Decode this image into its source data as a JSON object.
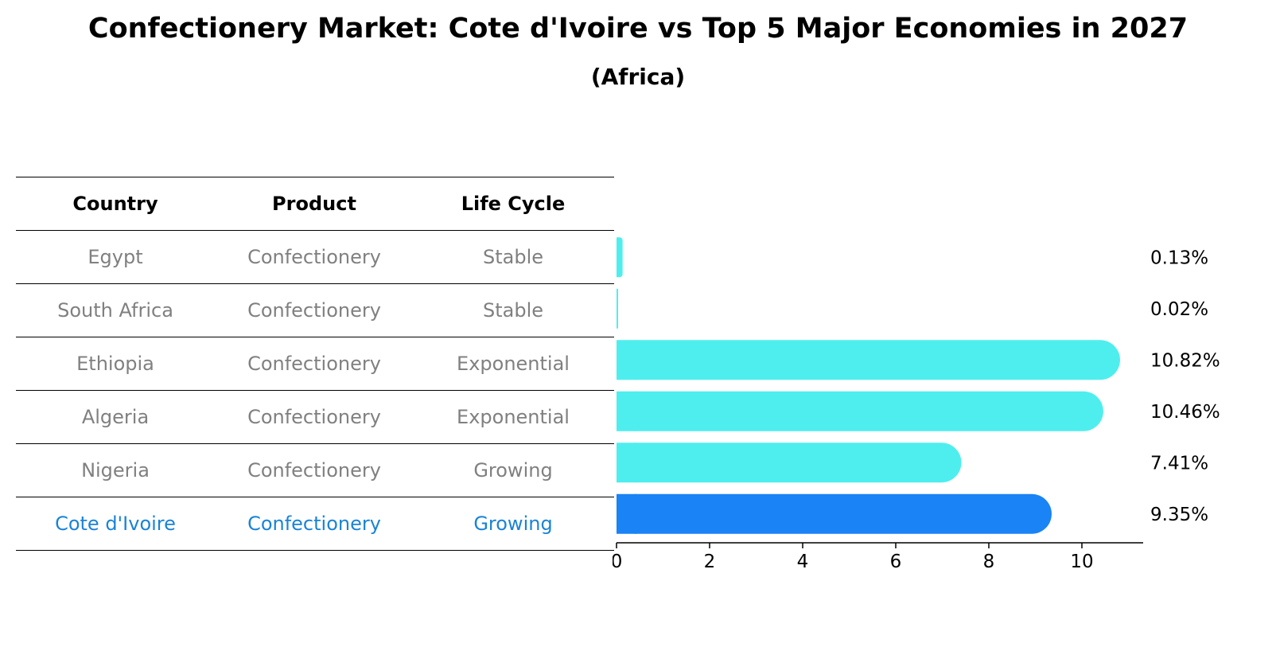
{
  "title": "Confectionery Market: Cote d'Ivoire vs Top 5 Major Economies in 2027",
  "subtitle": "(Africa)",
  "table": {
    "headers": [
      "Country",
      "Product",
      "Life Cycle"
    ],
    "rows": [
      [
        "Egypt",
        "Confectionery",
        "Stable"
      ],
      [
        "South Africa",
        "Confectionery",
        "Stable"
      ],
      [
        "Ethiopia",
        "Confectionery",
        "Exponential"
      ],
      [
        "Algeria",
        "Confectionery",
        "Exponential"
      ],
      [
        "Nigeria",
        "Confectionery",
        "Growing"
      ],
      [
        "Cote d'Ivoire",
        "Confectionery",
        "Growing"
      ]
    ]
  },
  "colors": {
    "bar": "#4eeeee",
    "highlight": "#1a83f5",
    "muted_text": "#808080",
    "highlight_text": "#1a83d6"
  },
  "chart_data": {
    "type": "bar",
    "orientation": "horizontal",
    "categories": [
      "Egypt",
      "South Africa",
      "Ethiopia",
      "Algeria",
      "Nigeria",
      "Cote d'Ivoire"
    ],
    "values": [
      0.13,
      0.02,
      10.82,
      10.46,
      7.41,
      9.35
    ],
    "labels": [
      "0.13%",
      "0.02%",
      "10.82%",
      "10.46%",
      "7.41%",
      "9.35%"
    ],
    "highlight_index": 5,
    "xlim": [
      0,
      11.4
    ],
    "xticks": [
      0,
      2,
      4,
      6,
      8,
      10
    ],
    "unit": "%"
  }
}
